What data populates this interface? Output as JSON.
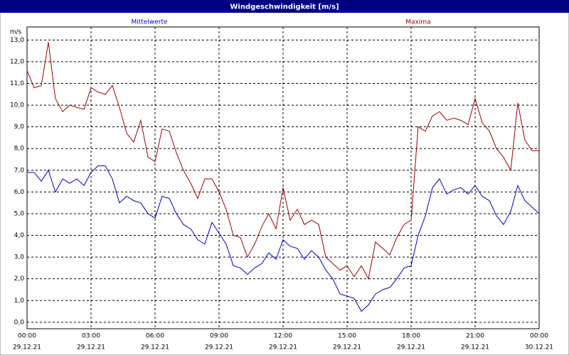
{
  "chart_data": {
    "type": "line",
    "title": "Windgeschwindigkeit [m/s]",
    "y_label": "m/s",
    "x": [
      0,
      0.33,
      0.67,
      1,
      1.33,
      1.67,
      2,
      2.33,
      2.67,
      3,
      3.33,
      3.67,
      4,
      4.33,
      4.67,
      5,
      5.33,
      5.67,
      6,
      6.33,
      6.67,
      7,
      7.33,
      7.67,
      8,
      8.33,
      8.67,
      9,
      9.33,
      9.67,
      10,
      10.33,
      10.67,
      11,
      11.33,
      11.67,
      12,
      12.33,
      12.67,
      13,
      13.33,
      13.67,
      14,
      14.33,
      14.67,
      15,
      15.33,
      15.67,
      16,
      16.33,
      16.67,
      17,
      17.33,
      17.67,
      18,
      18.33,
      18.67,
      19,
      19.33,
      19.67,
      20,
      20.33,
      20.67,
      21,
      21.33,
      21.67,
      22,
      22.33,
      22.67,
      23,
      23.33,
      23.67,
      24
    ],
    "series": [
      {
        "name": "Mittelwerte",
        "color": "#0000c8",
        "values": [
          6.9,
          6.9,
          6.5,
          7.0,
          6.0,
          6.6,
          6.4,
          6.6,
          6.3,
          6.9,
          7.2,
          7.2,
          6.6,
          5.5,
          5.8,
          5.6,
          5.5,
          5.0,
          4.8,
          5.8,
          5.7,
          5.0,
          4.5,
          4.3,
          3.8,
          3.6,
          4.6,
          4.1,
          3.6,
          2.6,
          2.5,
          2.2,
          2.5,
          2.7,
          3.2,
          2.9,
          3.8,
          3.5,
          3.4,
          2.9,
          3.3,
          3.0,
          2.4,
          2.0,
          1.3,
          1.2,
          1.1,
          0.5,
          0.8,
          1.3,
          1.5,
          1.6,
          2.0,
          2.5,
          2.6,
          4.0,
          4.9,
          6.2,
          6.6,
          5.9,
          6.1,
          6.2,
          5.9,
          6.3,
          5.8,
          5.6,
          4.9,
          4.5,
          5.1,
          6.3,
          5.6,
          5.3,
          5.0
        ]
      },
      {
        "name": "Maxima",
        "color": "#a00000",
        "values": [
          11.6,
          10.8,
          10.9,
          12.9,
          10.3,
          9.7,
          10.0,
          9.9,
          9.8,
          10.8,
          10.6,
          10.5,
          10.9,
          9.9,
          8.7,
          8.3,
          9.3,
          7.6,
          7.4,
          8.9,
          8.8,
          7.8,
          7.0,
          6.4,
          5.7,
          6.6,
          6.6,
          6.0,
          5.2,
          4.0,
          3.9,
          3.0,
          3.6,
          4.4,
          5.0,
          4.3,
          6.2,
          4.7,
          5.2,
          4.5,
          4.7,
          4.5,
          3.0,
          2.7,
          2.4,
          2.6,
          2.1,
          2.6,
          2.0,
          3.7,
          3.4,
          3.1,
          3.9,
          4.5,
          4.7,
          9.0,
          8.8,
          9.5,
          9.7,
          9.3,
          9.4,
          9.3,
          9.1,
          10.3,
          9.2,
          8.8,
          8.0,
          7.6,
          7.0,
          10.1,
          8.4,
          7.9,
          7.9
        ]
      }
    ],
    "xlim": [
      0,
      24
    ],
    "xticks": [
      {
        "value": 0,
        "label": "00:00"
      },
      {
        "value": 3,
        "label": "03:00"
      },
      {
        "value": 6,
        "label": "06:00"
      },
      {
        "value": 9,
        "label": "09:00"
      },
      {
        "value": 12,
        "label": "12:00"
      },
      {
        "value": 15,
        "label": "15:00"
      },
      {
        "value": 18,
        "label": "18:00"
      },
      {
        "value": 21,
        "label": "21:00"
      },
      {
        "value": 24,
        "label": "00:00"
      }
    ],
    "xtick_dates": [
      "29.12.21",
      "29.12.21",
      "29.12.21",
      "29.12.21",
      "29.12.21",
      "29.12.21",
      "29.12.21",
      "29.12.21",
      "30.12.21"
    ],
    "ylim": [
      -0.3,
      13.6
    ],
    "yticks": [
      {
        "value": 0,
        "label": "0,0"
      },
      {
        "value": 1,
        "label": "1,0"
      },
      {
        "value": 2,
        "label": "2,0"
      },
      {
        "value": 3,
        "label": "3,0"
      },
      {
        "value": 4,
        "label": "4,0"
      },
      {
        "value": 5,
        "label": "5,0"
      },
      {
        "value": 6,
        "label": "6,0"
      },
      {
        "value": 7,
        "label": "7,0"
      },
      {
        "value": 8,
        "label": "8,0"
      },
      {
        "value": 9,
        "label": "9,0"
      },
      {
        "value": 10,
        "label": "10,0"
      },
      {
        "value": 11,
        "label": "11,0"
      },
      {
        "value": 12,
        "label": "12,0"
      },
      {
        "value": 13,
        "label": "13,0"
      }
    ],
    "grid": true
  }
}
